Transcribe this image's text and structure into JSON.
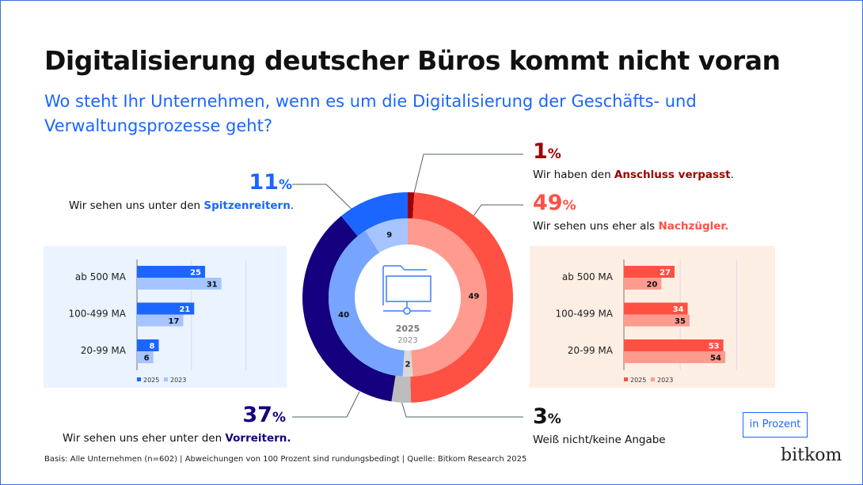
{
  "title": "Digitalisierung deutscher Büros kommt nicht voran",
  "subtitle": "Wo steht Ihr Unternehmen, wenn es um die Digitalisierung der Geschäfts- und Verwaltungsprozesse geht?",
  "callouts": [
    {
      "value": "11",
      "unit": "%",
      "pre": "Wir sehen uns unter den ",
      "em": "Spitzenreitern",
      "post": ".",
      "color": "#1a66ff"
    },
    {
      "value": "1",
      "unit": "%",
      "pre": "Wir haben den ",
      "em": "Anschluss verpasst",
      "post": ".",
      "color": "#a00000"
    },
    {
      "value": "49",
      "unit": "%",
      "pre": "Wir sehen uns eher als ",
      "em": "Nachzügler.",
      "post": "",
      "color": "#ff5044"
    },
    {
      "value": "37",
      "unit": "%",
      "pre": "Wir sehen uns eher unter den ",
      "em": "Vorreitern.",
      "post": "",
      "color": "#14007e"
    },
    {
      "value": "3",
      "unit": "%",
      "pre": "Weiß nicht/keine Angabe",
      "em": "",
      "post": "",
      "color": "#111111"
    }
  ],
  "footnote": "Basis: Alle Unternehmen (n=602) | Abweichungen von 100 Prozent sind rundungsbedingt | Quelle: Bitkom Research 2025",
  "unit_label": "in Prozent",
  "logo": "bitkom",
  "chart_data": [
    {
      "type": "donut",
      "center_labels": [
        "2025",
        "2023"
      ],
      "outer": {
        "name": "2025",
        "values": [
          1,
          49,
          3,
          37,
          11
        ],
        "colors": [
          "#a00000",
          "#ff5044",
          "#bdbdbd",
          "#14007e",
          "#1a66ff"
        ],
        "categories": [
          "Anschluss verpasst",
          "Nachzügler",
          "Weiß nicht/keine Angabe",
          "Vorreiter",
          "Spitzenreiter"
        ]
      },
      "inner": {
        "name": "2023",
        "values": [
          49,
          2,
          40,
          9
        ],
        "colors": [
          "#ff9a8f",
          "#d9d9d9",
          "#76a4ff",
          "#a6c4ff"
        ],
        "categories": [
          "Nachzügler",
          "Weiß nicht/keine Angabe",
          "Vorreiter",
          "Spitzenreiter"
        ],
        "labels": [
          "49",
          "2",
          "40",
          "9"
        ]
      }
    },
    {
      "type": "bar",
      "orientation": "horizontal",
      "categories": [
        "ab 500 MA",
        "100-499 MA",
        "20-99 MA"
      ],
      "series": [
        {
          "name": "2025",
          "values": [
            25,
            21,
            8
          ],
          "color": "#1a66ff"
        },
        {
          "name": "2023",
          "values": [
            31,
            17,
            6
          ],
          "color": "#a6c4ff"
        }
      ],
      "xlim": [
        0,
        40
      ],
      "gridlines": [
        20,
        40
      ],
      "background": "#eaf3ff"
    },
    {
      "type": "bar",
      "orientation": "horizontal",
      "categories": [
        "ab 500 MA",
        "100-499 MA",
        "20-99 MA"
      ],
      "series": [
        {
          "name": "2025",
          "values": [
            27,
            34,
            53
          ],
          "color": "#ff5044"
        },
        {
          "name": "2023",
          "values": [
            20,
            35,
            54
          ],
          "color": "#ff9a8f"
        }
      ],
      "xlim": [
        0,
        60
      ],
      "gridlines": [
        30,
        60
      ],
      "background": "#fdeee4"
    }
  ]
}
